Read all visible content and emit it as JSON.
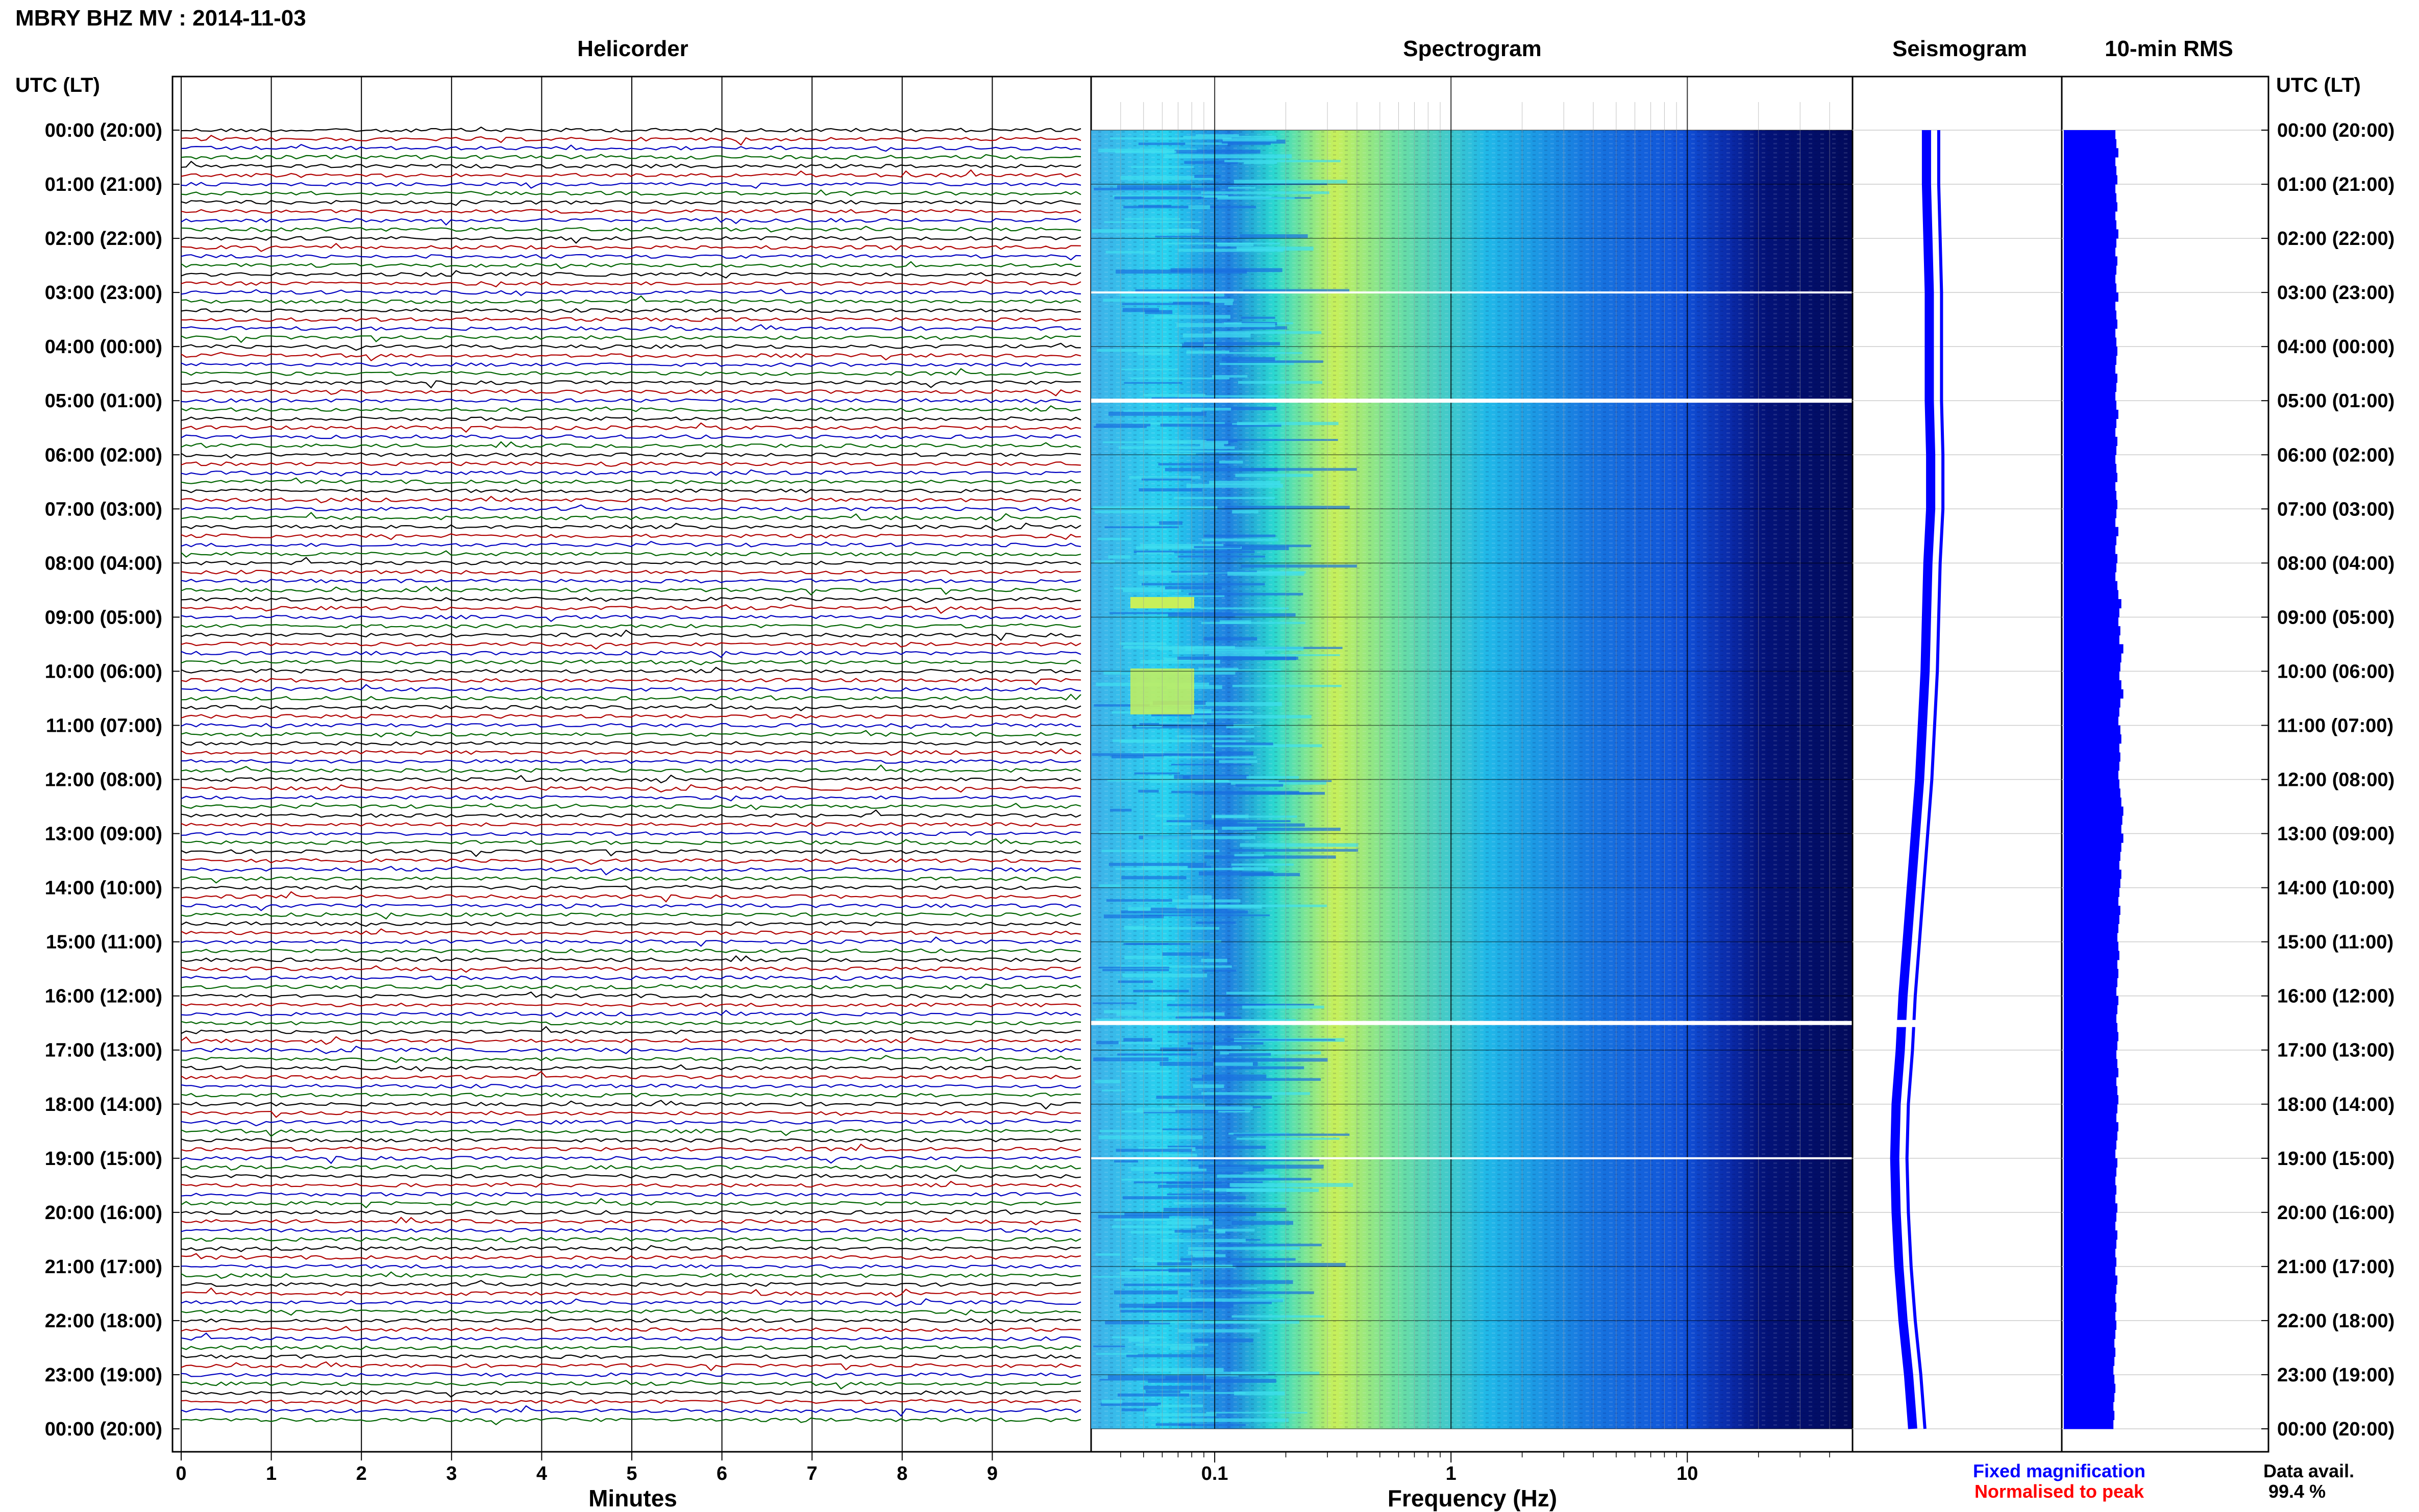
{
  "header": {
    "title": "MBRY BHZ MV : 2014-11-03",
    "utc_label_left": "UTC (LT)",
    "utc_label_right": "UTC (LT)"
  },
  "panels": {
    "helicorder": "Helicorder",
    "spectrogram": "Spectrogram",
    "seismogram": "Seismogram",
    "rms": "10-min RMS"
  },
  "axes": {
    "minutes_label": "Minutes",
    "frequency_label": "Frequency (Hz)",
    "minute_ticks": [
      "0",
      "1",
      "2",
      "3",
      "4",
      "5",
      "6",
      "7",
      "8",
      "9"
    ],
    "frequency_ticks": [
      "0.1",
      "1",
      "10"
    ]
  },
  "time_labels": [
    "00:00 (20:00)",
    "01:00 (21:00)",
    "02:00 (22:00)",
    "03:00 (23:00)",
    "04:00 (00:00)",
    "05:00 (01:00)",
    "06:00 (02:00)",
    "07:00 (03:00)",
    "08:00 (04:00)",
    "09:00 (05:00)",
    "10:00 (06:00)",
    "11:00 (07:00)",
    "12:00 (08:00)",
    "13:00 (09:00)",
    "14:00 (10:00)",
    "15:00 (11:00)",
    "16:00 (12:00)",
    "17:00 (13:00)",
    "18:00 (14:00)",
    "19:00 (15:00)",
    "20:00 (16:00)",
    "21:00 (17:00)",
    "22:00 (18:00)",
    "23:00 (19:00)",
    "00:00 (20:00)"
  ],
  "legend": {
    "fixed": "Fixed magnification",
    "normalised": "Normalised to peak",
    "avail_label": "Data avail.",
    "avail_value": "99.4 %"
  },
  "colors": {
    "fixed": "#0000ff",
    "normalised": "#ff0000",
    "trace_cycle": [
      "#000000",
      "#b00000",
      "#0000c0",
      "#006400"
    ]
  },
  "chart_data": {
    "type": "heatmap",
    "helicorder": {
      "minutes_per_line": 10,
      "hours": 24,
      "xlim": [
        0,
        10
      ]
    },
    "spectrogram": {
      "xscale": "log",
      "xlim": [
        0.03,
        50
      ]
    },
    "gaps_utc_hours": [
      3.0,
      5.0,
      16.5,
      19.0
    ],
    "rms_10min": [
      0.52,
      0.53,
      0.55,
      0.52,
      0.53,
      0.54,
      0.52,
      0.53,
      0.54,
      0.52,
      0.53,
      0.55,
      0.53,
      0.52,
      0.54,
      0.53,
      0.52,
      0.53,
      0.55,
      0.52,
      0.53,
      0.54,
      0.52,
      0.53,
      0.54,
      0.53,
      0.52,
      0.54,
      0.53,
      0.52,
      0.53,
      0.55,
      0.53,
      0.52,
      0.54,
      0.53,
      0.52,
      0.53,
      0.54,
      0.52,
      0.53,
      0.54,
      0.53,
      0.52,
      0.55,
      0.53,
      0.52,
      0.54,
      0.53,
      0.52,
      0.54,
      0.55,
      0.58,
      0.56,
      0.55,
      0.57,
      0.56,
      0.6,
      0.58,
      0.57,
      0.56,
      0.58,
      0.6,
      0.57,
      0.56,
      0.55,
      0.57,
      0.58,
      0.56,
      0.57,
      0.56,
      0.55,
      0.56,
      0.57,
      0.58,
      0.6,
      0.59,
      0.58,
      0.6,
      0.58,
      0.57,
      0.56,
      0.58,
      0.57,
      0.56,
      0.55,
      0.57,
      0.56,
      0.55,
      0.54,
      0.55,
      0.56,
      0.54,
      0.55,
      0.54,
      0.53,
      0.55,
      0.54,
      0.53,
      0.54,
      0.55,
      0.54,
      0.53,
      0.54,
      0.55,
      0.53,
      0.54,
      0.55,
      0.54,
      0.53,
      0.55,
      0.54,
      0.53,
      0.52,
      0.54,
      0.53,
      0.52,
      0.53,
      0.52,
      0.54,
      0.53,
      0.52,
      0.54,
      0.53,
      0.52,
      0.53,
      0.52,
      0.54,
      0.53,
      0.52,
      0.53,
      0.52,
      0.53,
      0.52,
      0.51,
      0.52,
      0.51,
      0.5,
      0.51,
      0.52,
      0.51,
      0.5,
      0.51,
      0.5
    ],
    "seismogram_envelope": [
      0.58,
      0.58,
      0.59,
      0.6,
      0.6,
      0.6,
      0.61,
      0.61,
      0.59,
      0.58,
      0.57,
      0.55,
      0.53,
      0.5,
      0.47,
      0.44,
      0.41,
      0.39,
      0.36,
      0.35,
      0.36,
      0.38,
      0.41,
      0.45,
      0.48
    ]
  }
}
